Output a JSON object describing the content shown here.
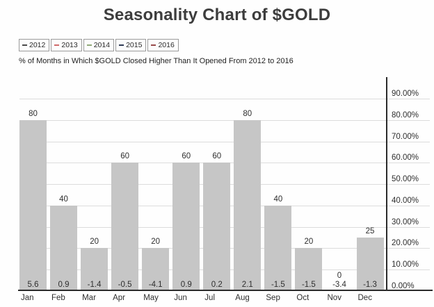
{
  "title": "Seasonality Chart of $GOLD",
  "subtitle": "% of Months in Which $GOLD Closed Higher Than It Opened From 2012 to 2016",
  "legend": {
    "items": [
      {
        "label": "2012",
        "color": "#4a4a4a"
      },
      {
        "label": "2013",
        "color": "#cf6a6a"
      },
      {
        "label": "2014",
        "color": "#8fa878"
      },
      {
        "label": "2015",
        "color": "#2e3a54"
      },
      {
        "label": "2016",
        "color": "#974a4a"
      }
    ]
  },
  "chart_data": {
    "type": "bar",
    "title": "Seasonality Chart of $GOLD",
    "subtitle": "% of Months in Which $GOLD Closed Higher Than It Opened From 2012 to 2016",
    "categories": [
      "Jan",
      "Feb",
      "Mar",
      "Apr",
      "May",
      "Jun",
      "Jul",
      "Aug",
      "Sep",
      "Oct",
      "Nov",
      "Dec"
    ],
    "values": [
      80,
      40,
      20,
      60,
      20,
      60,
      60,
      80,
      40,
      20,
      0,
      25
    ],
    "bar_top_labels": [
      "80",
      "40",
      "20",
      "60",
      "20",
      "60",
      "60",
      "80",
      "40",
      "20",
      "0",
      "25"
    ],
    "bar_footer_values": [
      "5.6",
      "0.9",
      "-1.4",
      "-0.5",
      "-4.1",
      "0.9",
      "0.2",
      "2.1",
      "-1.5",
      "-1.5",
      "-3.4",
      "-1.3"
    ],
    "xlabel": "",
    "ylabel": "",
    "ylim": [
      0,
      90
    ],
    "y_axis_side": "right",
    "y_ticks": [
      "0.00%",
      "10.00%",
      "20.00%",
      "30.00%",
      "40.00%",
      "50.00%",
      "60.00%",
      "70.00%",
      "80.00%",
      "90.00%"
    ],
    "y_tick_values": [
      0,
      10,
      20,
      30,
      40,
      50,
      60,
      70,
      80,
      90
    ],
    "grid": "horizontal",
    "legend_position": "top-left",
    "bar_color": "#c6c6c6",
    "gridline_color": "#dcdcdc",
    "axis_color": "#2b2b2b"
  }
}
